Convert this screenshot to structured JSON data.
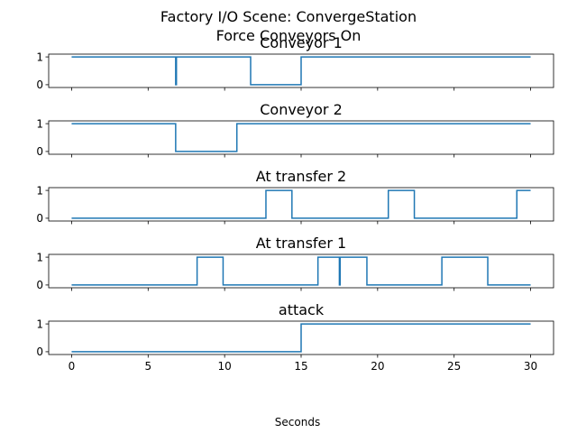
{
  "chart_data": {
    "type": "line",
    "title": "Factory I/O Scene: ConvergeStation",
    "subtitle": "Force Conveyors On",
    "xlabel": "Seconds",
    "xlim": [
      -1.5,
      31.5
    ],
    "xticks": [
      0,
      5,
      10,
      15,
      20,
      25,
      30
    ],
    "yticks": [
      0,
      1
    ],
    "ylim": [
      -0.1,
      1.1
    ],
    "line_color": "#1f77b4",
    "series": [
      {
        "name": "Conveyor 1",
        "points": [
          [
            0,
            1
          ],
          [
            6.8,
            1
          ],
          [
            6.8,
            0
          ],
          [
            6.85,
            0
          ],
          [
            6.85,
            1
          ],
          [
            11.7,
            1
          ],
          [
            11.7,
            0
          ],
          [
            15.0,
            0
          ],
          [
            15.0,
            1
          ],
          [
            30,
            1
          ]
        ]
      },
      {
        "name": "Conveyor 2",
        "points": [
          [
            0,
            1
          ],
          [
            6.8,
            1
          ],
          [
            6.8,
            0
          ],
          [
            10.8,
            0
          ],
          [
            10.8,
            1
          ],
          [
            30,
            1
          ]
        ]
      },
      {
        "name": "At transfer 2",
        "points": [
          [
            0,
            0
          ],
          [
            12.7,
            0
          ],
          [
            12.7,
            1
          ],
          [
            14.4,
            1
          ],
          [
            14.4,
            0
          ],
          [
            20.7,
            0
          ],
          [
            20.7,
            1
          ],
          [
            22.4,
            1
          ],
          [
            22.4,
            0
          ],
          [
            29.1,
            0
          ],
          [
            29.1,
            1
          ],
          [
            30,
            1
          ]
        ]
      },
      {
        "name": "At transfer 1",
        "points": [
          [
            0,
            0
          ],
          [
            8.2,
            0
          ],
          [
            8.2,
            1
          ],
          [
            9.9,
            1
          ],
          [
            9.9,
            0
          ],
          [
            16.1,
            0
          ],
          [
            16.1,
            1
          ],
          [
            17.5,
            1
          ],
          [
            17.5,
            0
          ],
          [
            17.55,
            0
          ],
          [
            17.55,
            1
          ],
          [
            19.3,
            1
          ],
          [
            19.3,
            0
          ],
          [
            24.2,
            0
          ],
          [
            24.2,
            1
          ],
          [
            27.2,
            1
          ],
          [
            27.2,
            0
          ],
          [
            30,
            0
          ]
        ]
      },
      {
        "name": "attack",
        "points": [
          [
            0,
            0
          ],
          [
            15.0,
            0
          ],
          [
            15.0,
            1
          ],
          [
            30,
            1
          ]
        ]
      }
    ]
  }
}
